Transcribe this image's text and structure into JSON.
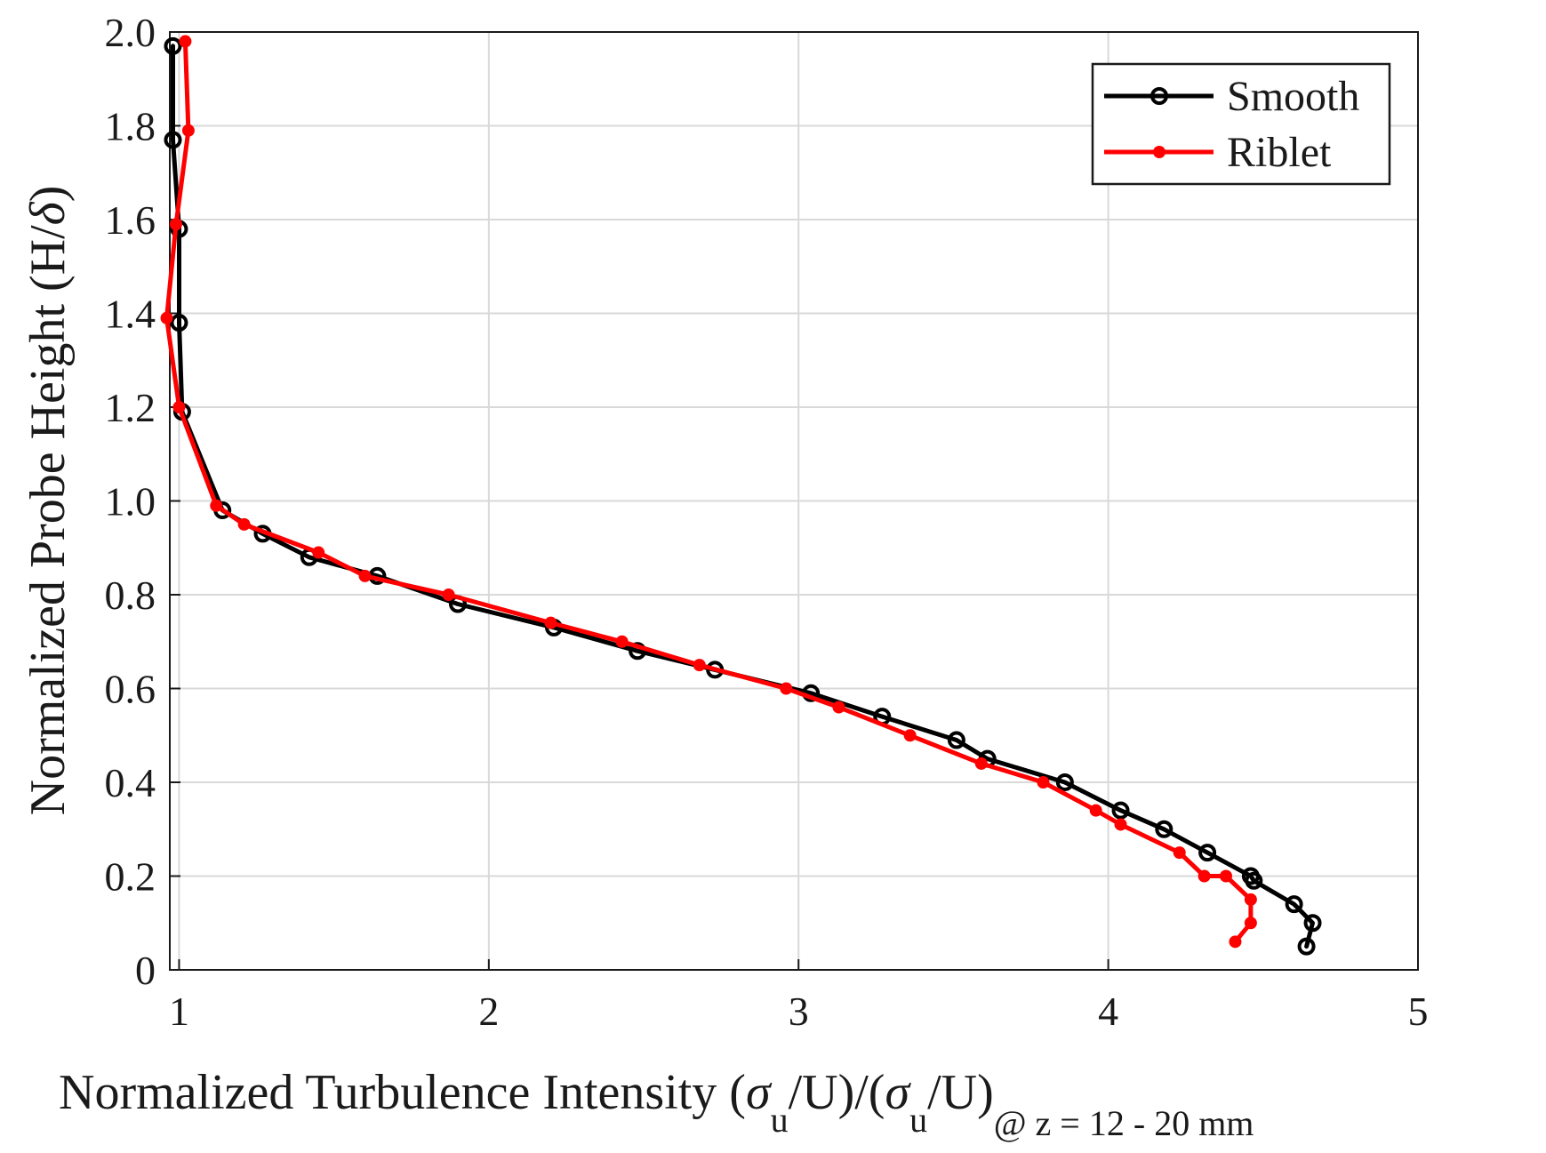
{
  "chart_data": {
    "type": "line",
    "xlabel_parts": {
      "main": "Normalized Turbulence Intensity (",
      "sigma1": "σ",
      "sub1": "u",
      "mid": "/U)/(",
      "sigma2": "σ",
      "sub2": "u",
      "end": "/U)",
      "sub3": "@ z = 12 - 20 mm"
    },
    "ylabel_parts": {
      "main": "Normalized Probe Height (H/",
      "delta": "δ",
      "end": ")"
    },
    "xlim": [
      0.97,
      5
    ],
    "ylim": [
      0,
      2.0
    ],
    "xticks": [
      {
        "value": 1,
        "label": "1"
      },
      {
        "value": 2,
        "label": "2"
      },
      {
        "value": 3,
        "label": "3"
      },
      {
        "value": 4,
        "label": "4"
      },
      {
        "value": 5,
        "label": "5"
      }
    ],
    "yticks": [
      {
        "value": 0,
        "label": "0"
      },
      {
        "value": 0.2,
        "label": "0.2"
      },
      {
        "value": 0.4,
        "label": "0.4"
      },
      {
        "value": 0.6,
        "label": "0.6"
      },
      {
        "value": 0.8,
        "label": "0.8"
      },
      {
        "value": 1.0,
        "label": "1.0"
      },
      {
        "value": 1.2,
        "label": "1.2"
      },
      {
        "value": 1.4,
        "label": "1.4"
      },
      {
        "value": 1.6,
        "label": "1.6"
      },
      {
        "value": 1.8,
        "label": "1.8"
      },
      {
        "value": 2.0,
        "label": "2.0"
      }
    ],
    "grid": true,
    "legend_position": "top-right",
    "series": [
      {
        "name": "Smooth",
        "color": "#000000",
        "marker": "open-circle",
        "points": [
          {
            "x": 0.98,
            "y": 1.97
          },
          {
            "x": 0.98,
            "y": 1.77
          },
          {
            "x": 1.0,
            "y": 1.58
          },
          {
            "x": 1.0,
            "y": 1.38
          },
          {
            "x": 1.01,
            "y": 1.19
          },
          {
            "x": 1.14,
            "y": 0.98
          },
          {
            "x": 1.27,
            "y": 0.93
          },
          {
            "x": 1.42,
            "y": 0.88
          },
          {
            "x": 1.64,
            "y": 0.84
          },
          {
            "x": 1.9,
            "y": 0.78
          },
          {
            "x": 2.21,
            "y": 0.73
          },
          {
            "x": 2.48,
            "y": 0.68
          },
          {
            "x": 2.73,
            "y": 0.64
          },
          {
            "x": 3.04,
            "y": 0.59
          },
          {
            "x": 3.27,
            "y": 0.54
          },
          {
            "x": 3.51,
            "y": 0.49
          },
          {
            "x": 3.61,
            "y": 0.45
          },
          {
            "x": 3.86,
            "y": 0.4
          },
          {
            "x": 4.04,
            "y": 0.34
          },
          {
            "x": 4.18,
            "y": 0.3
          },
          {
            "x": 4.32,
            "y": 0.25
          },
          {
            "x": 4.46,
            "y": 0.2
          },
          {
            "x": 4.47,
            "y": 0.19
          },
          {
            "x": 4.6,
            "y": 0.14
          },
          {
            "x": 4.66,
            "y": 0.1
          },
          {
            "x": 4.64,
            "y": 0.05
          }
        ]
      },
      {
        "name": "Riblet",
        "color": "#ff0000",
        "marker": "filled-dot",
        "points": [
          {
            "x": 1.02,
            "y": 1.98
          },
          {
            "x": 1.03,
            "y": 1.79
          },
          {
            "x": 0.99,
            "y": 1.59
          },
          {
            "x": 0.96,
            "y": 1.39
          },
          {
            "x": 1.0,
            "y": 1.2
          },
          {
            "x": 1.12,
            "y": 0.99
          },
          {
            "x": 1.21,
            "y": 0.95
          },
          {
            "x": 1.45,
            "y": 0.89
          },
          {
            "x": 1.6,
            "y": 0.84
          },
          {
            "x": 1.87,
            "y": 0.8
          },
          {
            "x": 2.2,
            "y": 0.74
          },
          {
            "x": 2.43,
            "y": 0.7
          },
          {
            "x": 2.68,
            "y": 0.65
          },
          {
            "x": 2.96,
            "y": 0.6
          },
          {
            "x": 3.13,
            "y": 0.56
          },
          {
            "x": 3.36,
            "y": 0.5
          },
          {
            "x": 3.59,
            "y": 0.44
          },
          {
            "x": 3.79,
            "y": 0.4
          },
          {
            "x": 3.96,
            "y": 0.34
          },
          {
            "x": 4.04,
            "y": 0.31
          },
          {
            "x": 4.23,
            "y": 0.25
          },
          {
            "x": 4.31,
            "y": 0.2
          },
          {
            "x": 4.38,
            "y": 0.2
          },
          {
            "x": 4.46,
            "y": 0.15
          },
          {
            "x": 4.46,
            "y": 0.1
          },
          {
            "x": 4.41,
            "y": 0.06
          }
        ]
      }
    ]
  }
}
